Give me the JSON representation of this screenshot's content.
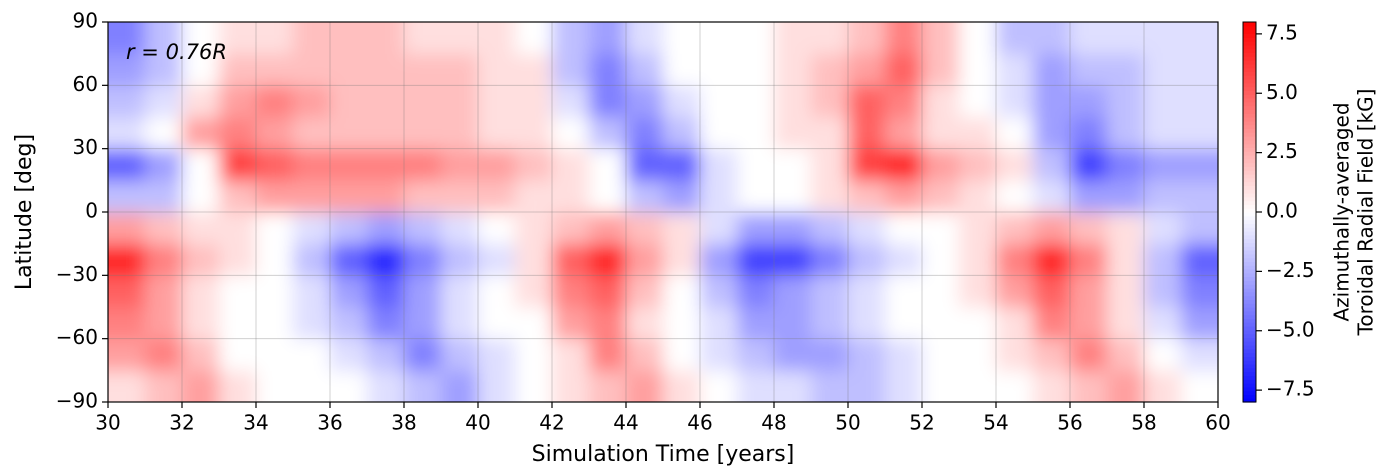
{
  "chart_data": {
    "type": "heatmap",
    "annotation": "r = 0.76R",
    "xlabel": "Simulation Time [years]",
    "ylabel": "Latitude [deg]",
    "colorbar_label": [
      "Azimuthally-averaged",
      "Toroidal Radial Field [kG]"
    ],
    "colormap": "bwr",
    "grid": true,
    "x_bins": [
      30,
      31,
      32,
      33,
      34,
      35,
      36,
      37,
      38,
      39,
      40,
      41,
      42,
      43,
      44,
      45,
      46,
      47,
      48,
      49,
      50,
      51,
      52,
      53,
      54,
      55,
      56,
      57,
      58,
      59,
      60
    ],
    "y_bins": [
      -90,
      -75,
      -60,
      -45,
      -30,
      -15,
      0,
      15,
      30,
      45,
      60,
      75,
      90
    ],
    "z": [
      [
        1,
        2,
        3,
        1,
        0,
        0,
        0,
        -1,
        -2,
        -3,
        -1,
        0,
        1,
        2,
        3,
        1,
        0,
        -1,
        -1,
        -2,
        -2,
        -1,
        0,
        0,
        0,
        1,
        2,
        3,
        1,
        0
      ],
      [
        3,
        4,
        2,
        0,
        0,
        0,
        -1,
        -2,
        -4,
        -2,
        -1,
        0,
        1,
        4,
        2,
        0,
        -1,
        -2,
        -3,
        -3,
        -2,
        -1,
        0,
        0,
        1,
        2,
        4,
        2,
        0,
        -1
      ],
      [
        4,
        3,
        1,
        0,
        0,
        -1,
        -2,
        -4,
        -3,
        -1,
        0,
        0,
        3,
        4,
        1,
        0,
        -1,
        -3,
        -3,
        -2,
        -1,
        0,
        0,
        0,
        1,
        4,
        3,
        1,
        -1,
        -3
      ],
      [
        5,
        3,
        1,
        0,
        0,
        -1,
        -3,
        -5,
        -3,
        -1,
        0,
        1,
        4,
        5,
        2,
        0,
        -2,
        -4,
        -3,
        -2,
        -1,
        0,
        0,
        1,
        3,
        5,
        3,
        1,
        -2,
        -4
      ],
      [
        7,
        4,
        2,
        1,
        0,
        -2,
        -5,
        -7,
        -4,
        -2,
        -1,
        1,
        5,
        7,
        3,
        1,
        -3,
        -6,
        -6,
        -4,
        -2,
        -1,
        0,
        1,
        4,
        7,
        4,
        1,
        -2,
        -5
      ],
      [
        3,
        2,
        1,
        1,
        0,
        -1,
        -2,
        -3,
        -2,
        -1,
        0,
        1,
        2,
        3,
        2,
        1,
        -1,
        -3,
        -3,
        -2,
        -1,
        0,
        0,
        1,
        2,
        3,
        2,
        1,
        -1,
        -2
      ],
      [
        -2,
        -2,
        0,
        2,
        3,
        3,
        3,
        3,
        2,
        2,
        2,
        1,
        1,
        0,
        -2,
        -3,
        -1,
        0,
        0,
        1,
        2,
        3,
        2,
        1,
        0,
        -1,
        -3,
        -3,
        -2,
        -2
      ],
      [
        -5,
        -3,
        0,
        6,
        5,
        4,
        4,
        4,
        4,
        3,
        3,
        2,
        1,
        0,
        -5,
        -5,
        -1,
        0,
        0,
        1,
        6,
        7,
        3,
        2,
        1,
        -2,
        -6,
        -4,
        -3,
        -3
      ],
      [
        -1,
        0,
        3,
        4,
        3,
        2,
        2,
        2,
        2,
        2,
        1,
        1,
        0,
        -2,
        -4,
        -2,
        0,
        0,
        1,
        1,
        5,
        3,
        1,
        1,
        0,
        -3,
        -4,
        -2,
        -1,
        -1
      ],
      [
        -2,
        -1,
        1,
        3,
        4,
        3,
        2,
        2,
        2,
        2,
        1,
        1,
        -1,
        -4,
        -3,
        -1,
        0,
        0,
        1,
        2,
        5,
        4,
        1,
        0,
        -1,
        -3,
        -3,
        -2,
        -1,
        -1
      ],
      [
        -3,
        -2,
        0,
        2,
        2,
        2,
        2,
        2,
        2,
        2,
        1,
        1,
        -2,
        -4,
        -2,
        0,
        0,
        0,
        1,
        2,
        3,
        5,
        2,
        0,
        -1,
        -3,
        -2,
        -2,
        -1,
        -1
      ],
      [
        -4,
        -2,
        0,
        1,
        1,
        2,
        2,
        2,
        1,
        1,
        1,
        0,
        -2,
        -3,
        -1,
        0,
        0,
        0,
        1,
        1,
        2,
        4,
        2,
        0,
        -2,
        -2,
        -1,
        -1,
        -1,
        -1
      ]
    ],
    "xlim": [
      30,
      60
    ],
    "ylim": [
      -90,
      90
    ],
    "xticks": [
      30,
      32,
      34,
      36,
      38,
      40,
      42,
      44,
      46,
      48,
      50,
      52,
      54,
      56,
      58,
      60
    ],
    "yticks": [
      {
        "value": -90,
        "label": "−90"
      },
      {
        "value": -60,
        "label": "−60"
      },
      {
        "value": -30,
        "label": "−30"
      },
      0,
      30,
      60,
      90
    ],
    "zlim": [
      -8,
      8
    ],
    "zticks": [
      {
        "value": -7.5,
        "label": "−7.5"
      },
      {
        "value": -5,
        "label": "−5.0"
      },
      {
        "value": -2.5,
        "label": "−2.5"
      },
      {
        "value": 0,
        "label": "0.0"
      },
      {
        "value": 2.5,
        "label": "2.5"
      },
      {
        "value": 5,
        "label": "5.0"
      },
      {
        "value": 7.5,
        "label": "7.5"
      }
    ]
  }
}
